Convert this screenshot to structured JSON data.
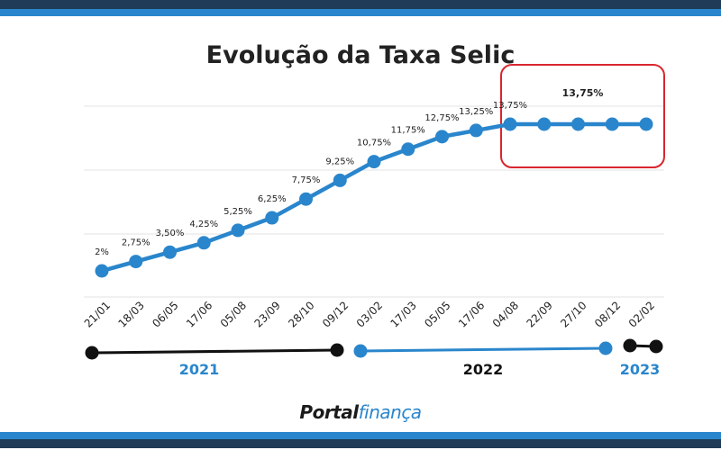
{
  "colors": {
    "line": "#2a86cc",
    "highlight_box": "#d9262e",
    "timeline_dark": "#111111",
    "timeline_blue": "#2a86cc",
    "grid": "#e3e3e3"
  },
  "brand": {
    "part1": "Portal",
    "part2": "finança"
  },
  "chart_data": {
    "type": "line",
    "title": "Evolução da Taxa Selic",
    "categories": [
      "21/01",
      "18/03",
      "06/05",
      "17/06",
      "05/08",
      "23/09",
      "28/10",
      "09/12",
      "03/02",
      "17/03",
      "05/05",
      "17/06",
      "04/08",
      "22/09",
      "27/10",
      "08/12",
      "02/02"
    ],
    "values": [
      2,
      2.75,
      3.5,
      4.25,
      5.25,
      6.25,
      7.75,
      9.25,
      10.75,
      11.75,
      12.75,
      13.25,
      13.75,
      13.75,
      13.75,
      13.75,
      13.75
    ],
    "labels": [
      "2%",
      "2,75%",
      "3,50%",
      "4,25%",
      "5,25%",
      "6,25%",
      "7,75%",
      "9,25%",
      "10,75%",
      "11,75%",
      "12,75%",
      "13,25%",
      "13,75%",
      "",
      "",
      "",
      ""
    ],
    "highlight": {
      "label": "13,75%",
      "from_index": 12,
      "to_index": 16
    },
    "years": [
      {
        "label": "2021",
        "from_index": 0,
        "to_index": 7,
        "color": "#111111",
        "label_color": "#2a86cc"
      },
      {
        "label": "2022",
        "from_index": 7,
        "to_index": 15,
        "color": "#2a86cc",
        "label_color": "#111111"
      },
      {
        "label": "2023",
        "from_index": 15,
        "to_index": 16,
        "color": "#111111",
        "label_color": "#2a86cc"
      }
    ],
    "grid": true,
    "legend": "none"
  }
}
